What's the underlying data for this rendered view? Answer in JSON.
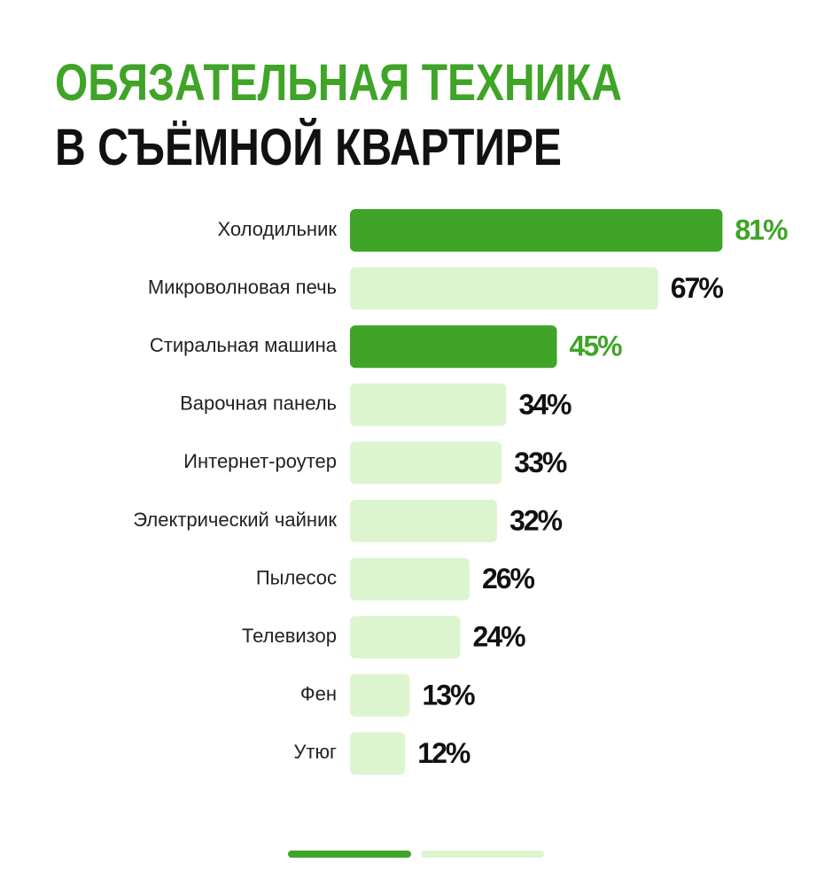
{
  "chart_data": {
    "type": "bar",
    "orientation": "horizontal",
    "title": "ОБЯЗАТЕЛЬНАЯ ТЕХНИКА",
    "subtitle": "В СЪЁМНОЙ КВАРТИРЕ",
    "title_color": "#3fa427",
    "subtitle_color": "#111111",
    "categories": [
      "Холодильник",
      "Микроволновая печь",
      "Стиральная машина",
      "Варочная панель",
      "Интернет-роутер",
      "Электрический чайник",
      "Пылесос",
      "Телевизор",
      "Фен",
      "Утюг"
    ],
    "values": [
      81,
      67,
      45,
      34,
      33,
      32,
      26,
      24,
      13,
      12
    ],
    "value_labels": [
      "81%",
      "67%",
      "45%",
      "34%",
      "33%",
      "32%",
      "26%",
      "24%",
      "13%",
      "12%"
    ],
    "colors": [
      "#3fa427",
      "#dcf5cf",
      "#3fa427",
      "#dcf5cf",
      "#dcf5cf",
      "#dcf5cf",
      "#dcf5cf",
      "#dcf5cf",
      "#dcf5cf",
      "#dcf5cf"
    ],
    "value_label_colors": [
      "#3fa427",
      "#111111",
      "#3fa427",
      "#111111",
      "#111111",
      "#111111",
      "#111111",
      "#111111",
      "#111111",
      "#111111"
    ]
  }
}
